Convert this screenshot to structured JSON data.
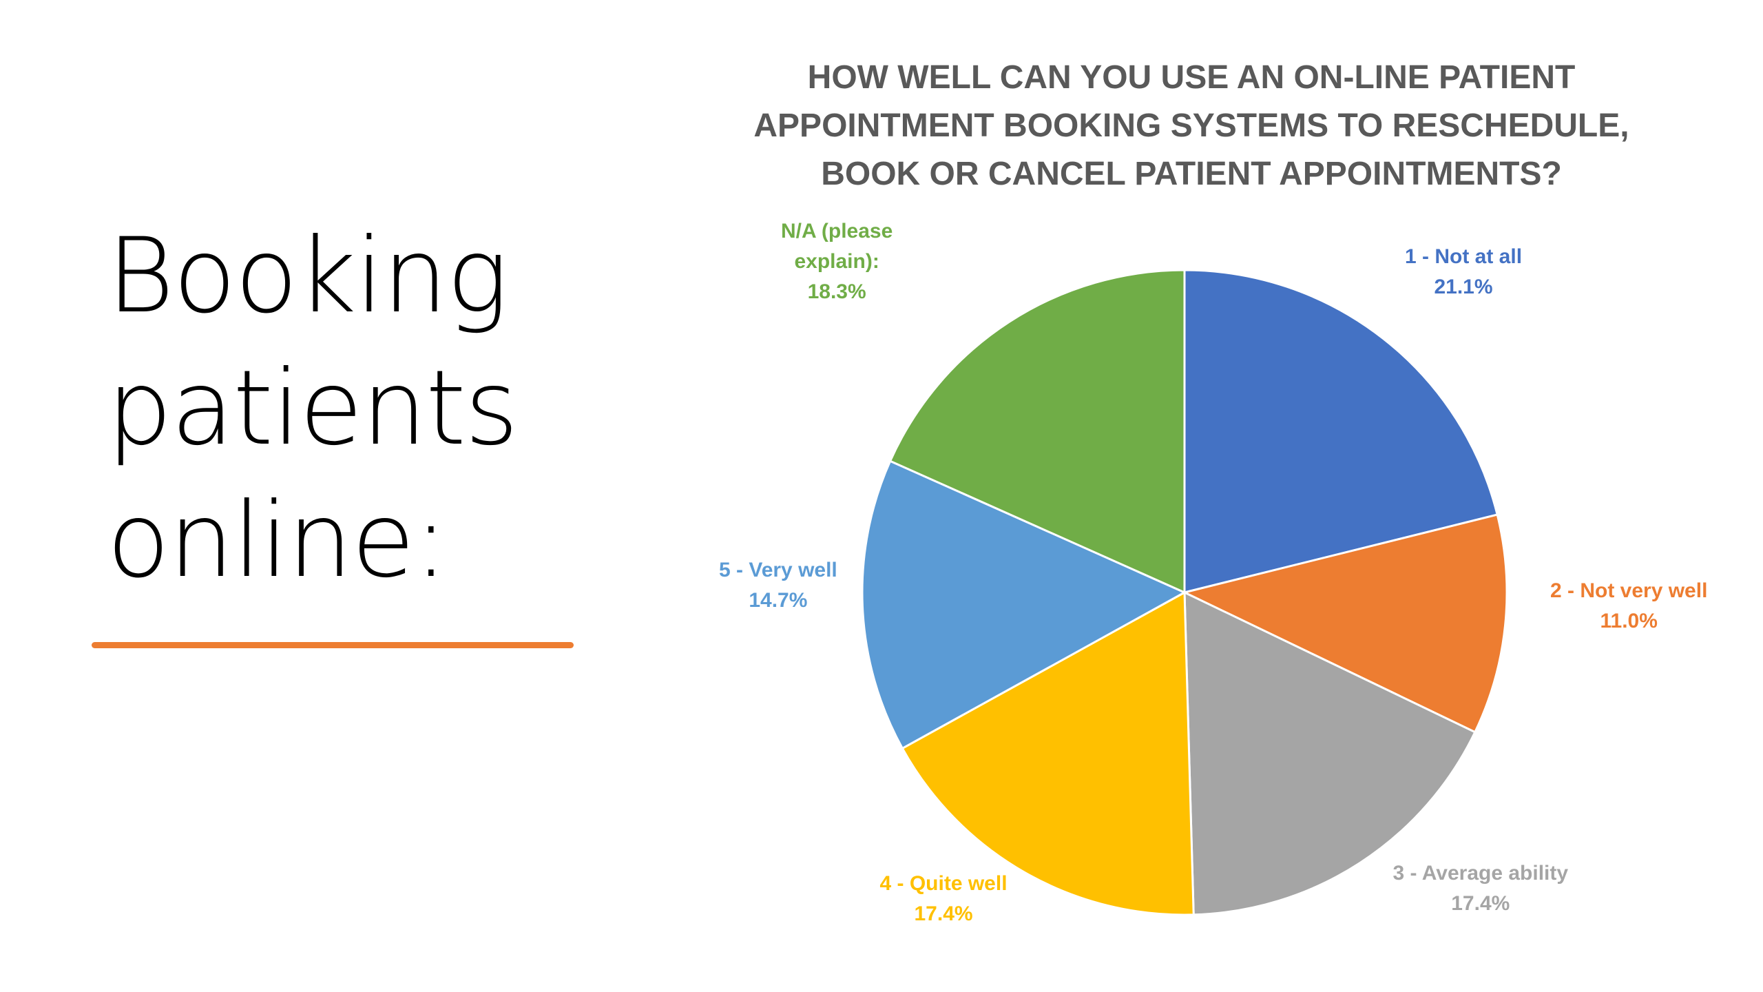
{
  "slide": {
    "title_lines": [
      "Booking",
      "patients",
      "online:"
    ]
  },
  "chart_data": {
    "type": "pie",
    "title": "HOW WELL CAN YOU USE AN ON-LINE PATIENT APPOINTMENT BOOKING SYSTEMS TO RESCHEDULE, BOOK OR CANCEL PATIENT APPOINTMENTS?",
    "title_lines": [
      "HOW WELL CAN YOU USE AN ON-LINE PATIENT",
      "APPOINTMENT BOOKING SYSTEMS TO RESCHEDULE,",
      "BOOK OR CANCEL PATIENT APPOINTMENTS?"
    ],
    "start_angle": "12 o'clock",
    "direction": "clockwise",
    "slices": [
      {
        "category": "1 - Not at all",
        "label_lines": [
          "1 - Not at all"
        ],
        "value": 21.1,
        "value_label": "21.1%",
        "color": "#4472C4"
      },
      {
        "category": "2 - Not very well",
        "label_lines": [
          "2 - Not very well"
        ],
        "value": 11.0,
        "value_label": "11.0%",
        "color": "#ED7D31"
      },
      {
        "category": "3 - Average ability",
        "label_lines": [
          "3 - Average ability"
        ],
        "value": 17.4,
        "value_label": "17.4%",
        "color": "#A5A5A5"
      },
      {
        "category": "4 - Quite well",
        "label_lines": [
          "4 - Quite well"
        ],
        "value": 17.4,
        "value_label": "17.4%",
        "color": "#FFC000"
      },
      {
        "category": "5 - Very well",
        "label_lines": [
          "5 - Very well"
        ],
        "value": 14.7,
        "value_label": "14.7%",
        "color": "#5B9BD5"
      },
      {
        "category": "N/A (please explain):",
        "label_lines": [
          "N/A (please",
          "explain):"
        ],
        "value": 18.3,
        "value_label": "18.3%",
        "color": "#70AD47"
      }
    ],
    "legend": "none",
    "data_labels": "outside"
  },
  "colors": {
    "accent_rule": "#ED7D31",
    "title_text": "#595959"
  }
}
